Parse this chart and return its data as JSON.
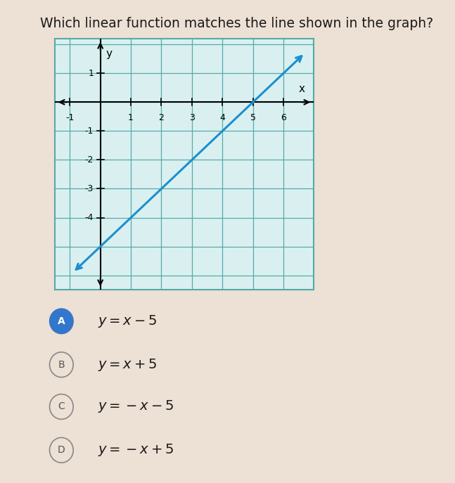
{
  "title": "Which linear function matches the line shown in the graph?",
  "title_fontsize": 13.5,
  "title_color": "#1a1a1a",
  "background_color": "#ede0d4",
  "graph_bg_color": "#daf0f0",
  "graph_grid_color": "#55aaaa",
  "graph_border_color": "#55aaaa",
  "xlim": [
    -1.5,
    7.0
  ],
  "ylim": [
    -6.5,
    2.2
  ],
  "x_ticks": [
    -1,
    1,
    2,
    3,
    4,
    5,
    6
  ],
  "y_ticks": [
    -1,
    -2,
    -3,
    -4
  ],
  "y_tick_pos_top": [
    1
  ],
  "line_slope": 1,
  "line_intercept": -5,
  "line_color": "#1a90d0",
  "line_width": 2.2,
  "options": [
    {
      "label": "A",
      "text": "$y = x - 5$",
      "selected": true
    },
    {
      "label": "B",
      "text": "$y = x + 5$",
      "selected": false
    },
    {
      "label": "C",
      "text": "$y = -x - 5$",
      "selected": false
    },
    {
      "label": "D",
      "text": "$y = -x + 5$",
      "selected": false
    }
  ],
  "option_circle_selected_color": "#3377cc",
  "option_circle_unselected_color": "#ede0d4",
  "option_circle_border_color": "#888888",
  "option_text_color": "#1a1a1a",
  "option_fontsize": 14,
  "left_bar_color": "#2244aa"
}
